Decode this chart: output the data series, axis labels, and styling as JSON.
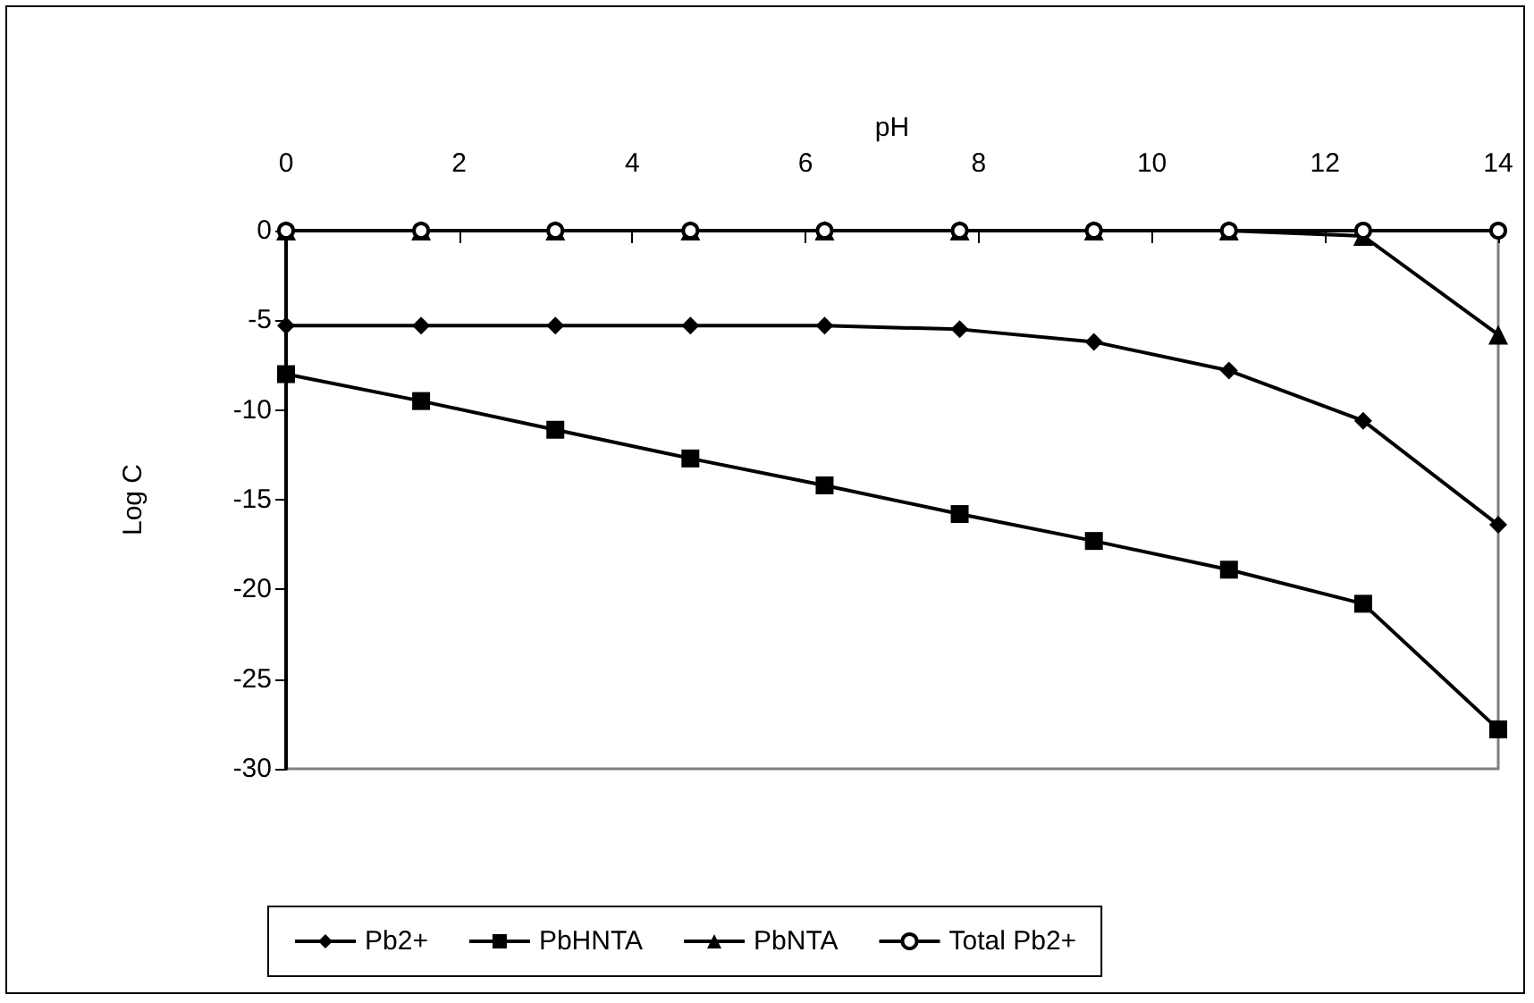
{
  "chart_data": {
    "type": "line",
    "xlabel": "pH",
    "ylabel": "Log C",
    "xlim": [
      0,
      14
    ],
    "xticks": [
      0,
      2,
      4,
      6,
      8,
      10,
      12,
      14
    ],
    "ylim": [
      -30,
      0
    ],
    "yticks": [
      0,
      -5,
      -10,
      -15,
      -20,
      -25,
      -30
    ],
    "x": [
      0,
      1.56,
      3.11,
      4.67,
      6.22,
      7.78,
      9.33,
      10.89,
      12.44,
      14
    ],
    "grid": false,
    "legend": "bottom",
    "line_style": "solid",
    "series": [
      {
        "name": "Pb2+",
        "color": "#000000",
        "marker": "diamond",
        "values": [
          -5.3,
          -5.3,
          -5.3,
          -5.3,
          -5.3,
          -5.5,
          -6.2,
          -7.8,
          -10.6,
          -16.4
        ]
      },
      {
        "name": "PbHNTA",
        "color": "#000000",
        "marker": "square",
        "values": [
          -8.0,
          -9.5,
          -11.1,
          -12.7,
          -14.2,
          -15.8,
          -17.3,
          -18.9,
          -20.8,
          -27.8
        ]
      },
      {
        "name": "PbNTA",
        "color": "#000000",
        "marker": "triangle",
        "values": [
          0,
          0,
          0,
          0,
          0,
          0,
          0,
          0,
          -0.3,
          -5.8
        ]
      },
      {
        "name": "Total Pb2+",
        "color": "#000000",
        "marker": "circle",
        "values": [
          0,
          0,
          0,
          0,
          0,
          0,
          0,
          0,
          0,
          0
        ]
      }
    ]
  }
}
